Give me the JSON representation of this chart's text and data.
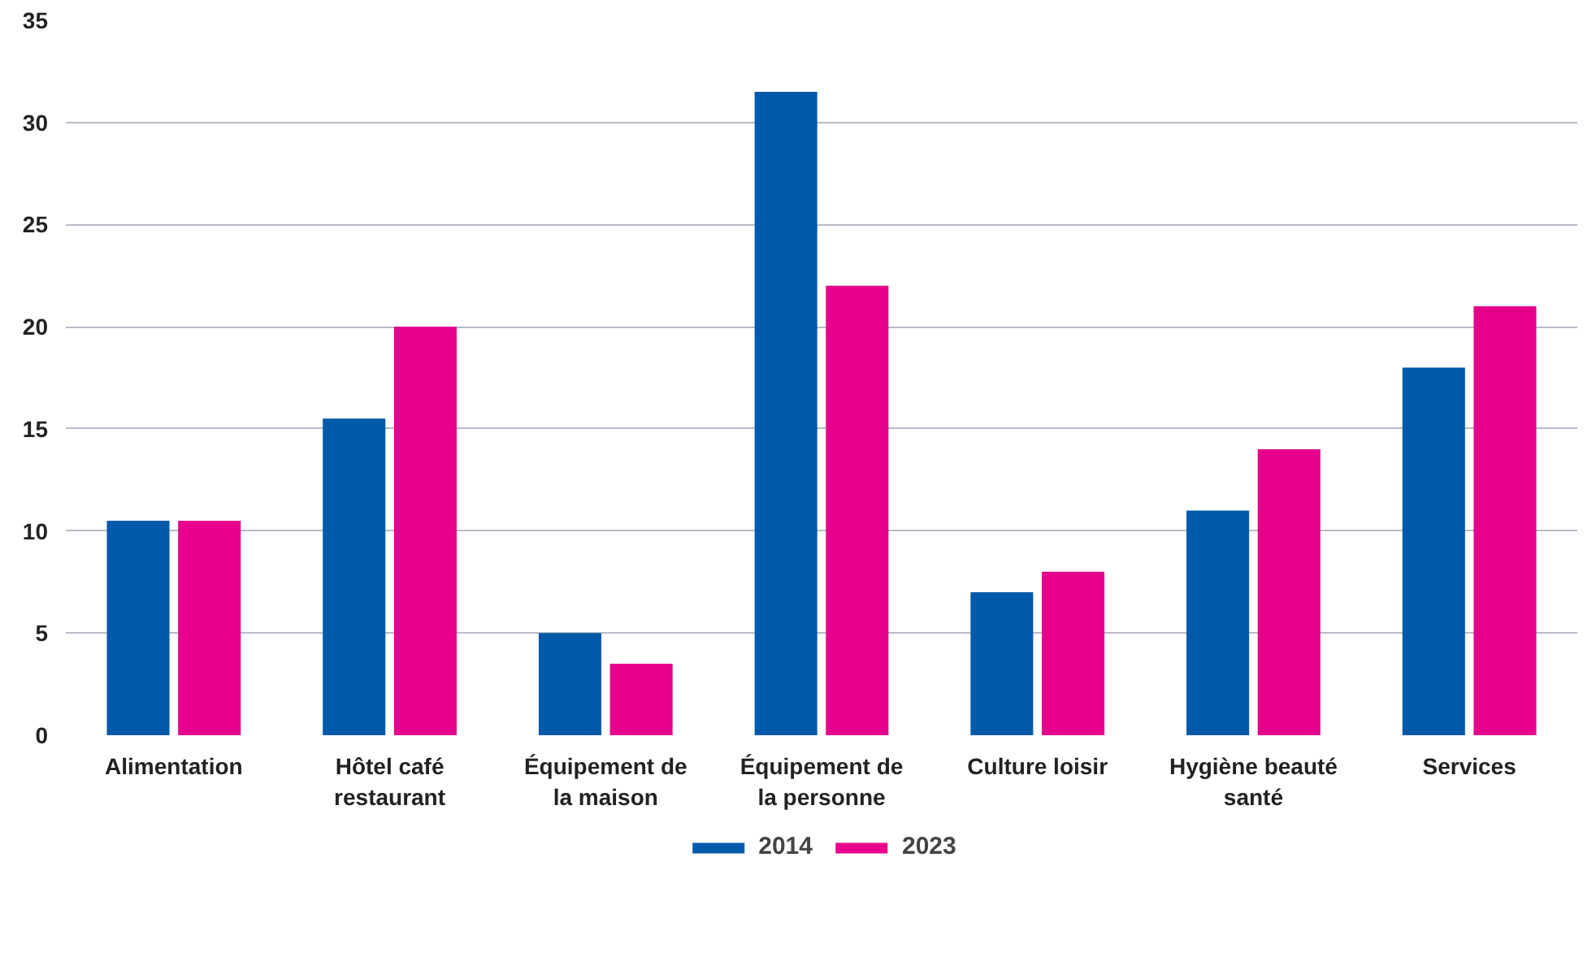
{
  "chart_data": {
    "type": "bar",
    "categories": [
      "Alimentation",
      "Hôtel café restaurant",
      "Équipement de la maison",
      "Équipement de la personne",
      "Culture loisir",
      "Hygiène beauté santé",
      "Services"
    ],
    "series": [
      {
        "name": "2014",
        "color": "#005aa9",
        "values": [
          10.5,
          15.5,
          5,
          31.5,
          7,
          11,
          18
        ]
      },
      {
        "name": "2023",
        "color": "#e6008c",
        "values": [
          10.5,
          20,
          3.5,
          22,
          8,
          14,
          21
        ]
      }
    ],
    "ylim": [
      0,
      35
    ],
    "yticks": [
      0,
      5,
      10,
      15,
      20,
      25,
      30,
      35
    ],
    "grid": "y",
    "legend": "bottom"
  }
}
